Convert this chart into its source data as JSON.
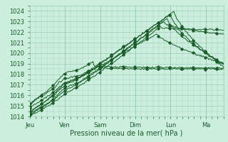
{
  "title": "",
  "xlabel": "Pression niveau de la mer( hPa )",
  "ylabel": "",
  "bg_color": "#cceedd",
  "plot_bg_color": "#cceedd",
  "grid_color": "#99ccbb",
  "line_color": "#1a5c2a",
  "ylim": [
    1014,
    1024.5
  ],
  "yticks": [
    1014,
    1015,
    1016,
    1017,
    1018,
    1019,
    1020,
    1021,
    1022,
    1023,
    1024
  ],
  "days": [
    "Jeu",
    "Ven",
    "Sam",
    "Dim",
    "Lun",
    "Ma"
  ],
  "day_positions": [
    0,
    1,
    2,
    3,
    4,
    5
  ],
  "xlim": [
    0,
    5.5
  ],
  "num_days": 5.5
}
